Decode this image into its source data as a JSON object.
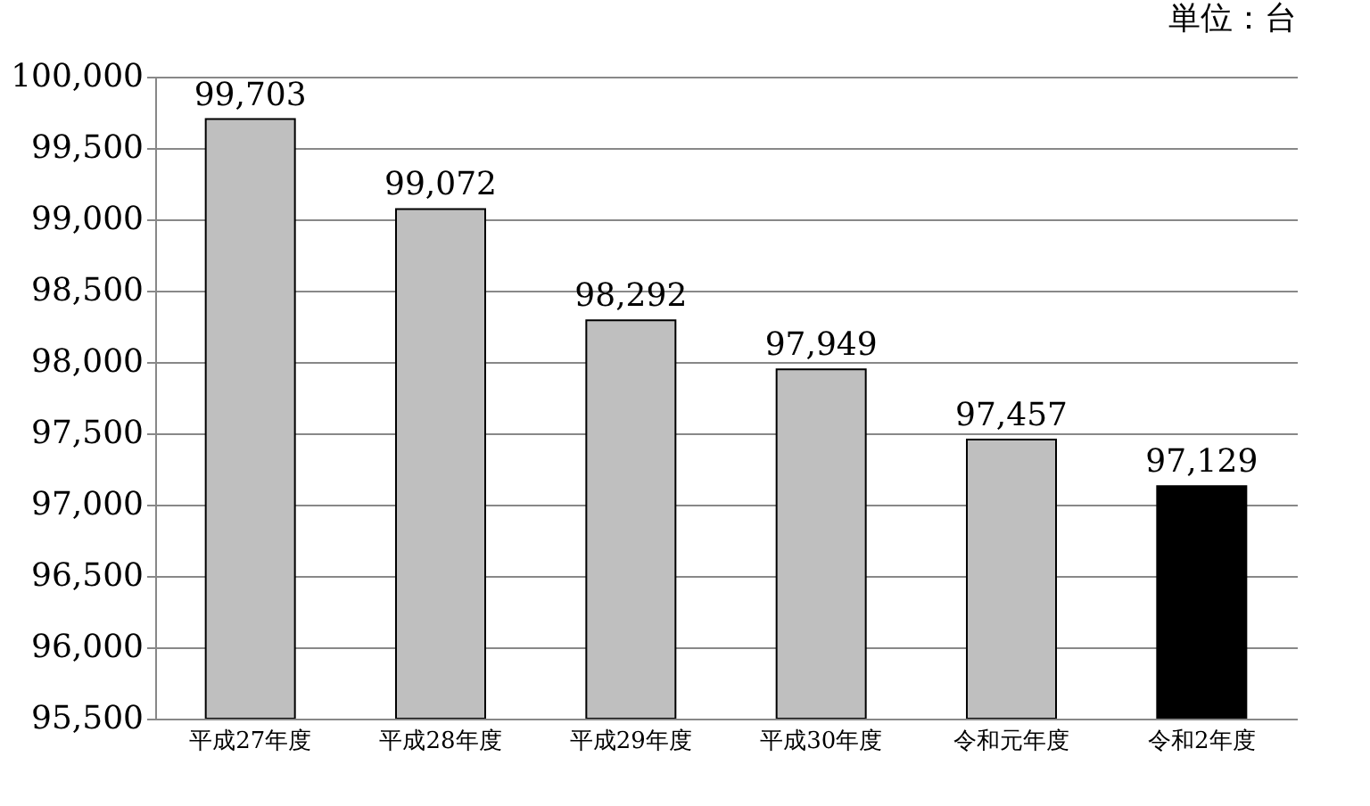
{
  "chart_data": {
    "type": "bar",
    "categories": [
      "平成27年度",
      "平成28年度",
      "平成29年度",
      "平成30年度",
      "令和元年度",
      "令和2年度"
    ],
    "values": [
      99703,
      99072,
      98292,
      97949,
      97457,
      97129
    ],
    "value_labels": [
      "99,703",
      "99,072",
      "98,292",
      "97,949",
      "97,457",
      "97,129"
    ],
    "colors": [
      "#bfbfbf",
      "#bfbfbf",
      "#bfbfbf",
      "#bfbfbf",
      "#bfbfbf",
      "#000000"
    ],
    "ylim": [
      95500,
      100000
    ],
    "yticks": [
      {
        "value": 95500,
        "label": "95,500"
      },
      {
        "value": 96000,
        "label": "96,000"
      },
      {
        "value": 96500,
        "label": "96,500"
      },
      {
        "value": 97000,
        "label": "97,000"
      },
      {
        "value": 97500,
        "label": "97,500"
      },
      {
        "value": 98000,
        "label": "98,000"
      },
      {
        "value": 98500,
        "label": "98,500"
      },
      {
        "value": 99000,
        "label": "99,000"
      },
      {
        "value": 99500,
        "label": "99,500"
      },
      {
        "value": 100000,
        "label": "100,000"
      }
    ],
    "grid": "y",
    "data_labels": true,
    "annotations": [
      "単位：台"
    ]
  }
}
